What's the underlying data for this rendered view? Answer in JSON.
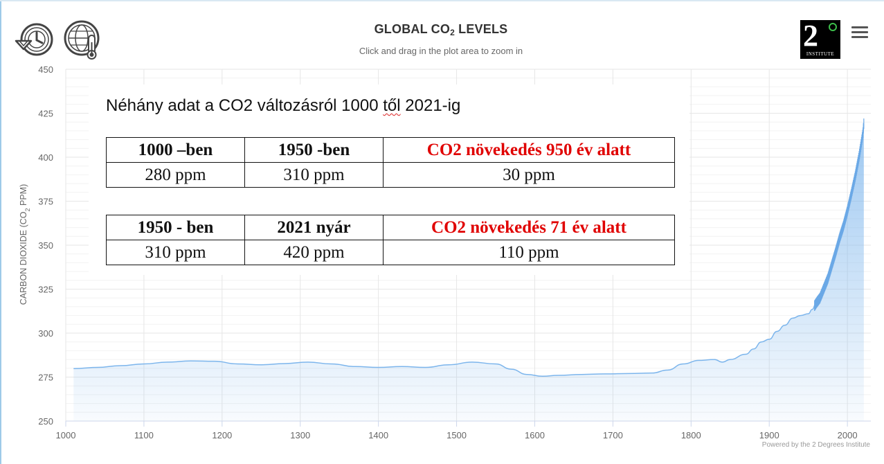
{
  "header": {
    "title_main": "GLOBAL CO",
    "title_sub": "2",
    "title_tail": " LEVELS",
    "subtitle": "Click and drag in the plot area to zoom in"
  },
  "logo": {
    "mark": "2",
    "text": "INSTITUTE"
  },
  "icons": {
    "left_1": "history-icon",
    "left_2": "globe-thermometer-icon",
    "menu": "hamburger-menu-icon"
  },
  "credits": "Powered by the 2 Degrees Institute",
  "overlay": {
    "heading_pre": "Néhány adat a CO2 változásról 1000 ",
    "heading_word": "től",
    "heading_post": " 2021-ig",
    "table1": {
      "headers": [
        "1000 –ben",
        "1950 -ben",
        "CO2 növekedés 950 év alatt"
      ],
      "values": [
        "280 ppm",
        "310 ppm",
        "30 ppm"
      ]
    },
    "table2": {
      "headers": [
        "1950 - ben",
        "2021 nyár",
        "CO2 növekedés 71 év alatt"
      ],
      "values": [
        "310 ppm",
        "420 ppm",
        "110 ppm"
      ]
    }
  },
  "chart_data": {
    "type": "area",
    "title": "GLOBAL CO2 LEVELS",
    "subtitle": "Click and drag in the plot area to zoom in",
    "ylabel": "CARBON DIOXIDE (CO2 PPM)",
    "ylabel_main": "CARBON DIOXIDE (CO",
    "ylabel_sub": "2",
    "ylabel_tail": " PPM)",
    "xlabel": "",
    "xlim": [
      1000,
      2030
    ],
    "ylim": [
      250,
      450
    ],
    "x_ticks": [
      1000,
      1100,
      1200,
      1300,
      1400,
      1500,
      1600,
      1700,
      1800,
      1900,
      2000
    ],
    "y_ticks": [
      250,
      275,
      300,
      325,
      350,
      375,
      400,
      425,
      450
    ],
    "grid": true,
    "color": "#7cb5ec",
    "series": [
      {
        "x": [
          1010,
          1040,
          1070,
          1100,
          1130,
          1160,
          1190,
          1220,
          1250,
          1280,
          1310,
          1340,
          1370,
          1400,
          1430,
          1460,
          1490,
          1520,
          1550,
          1570,
          1590,
          1610,
          1630,
          1660,
          1690,
          1720,
          1750,
          1770,
          1790,
          1810,
          1830,
          1840,
          1850,
          1870,
          1880,
          1890,
          1900,
          1910,
          1920,
          1930,
          1940,
          1950,
          1955,
          1960,
          1965,
          1970,
          1975,
          1980,
          1985,
          1990,
          1995,
          2000,
          2005,
          2010,
          2015,
          2018,
          2020,
          2021
        ],
        "y": [
          279.8,
          280.5,
          281.5,
          282.5,
          283.5,
          284.2,
          284.0,
          282.5,
          282.0,
          282.7,
          283.5,
          282.5,
          281.0,
          280.5,
          281.0,
          280.5,
          282.0,
          283.5,
          282.5,
          279.5,
          276.5,
          275.5,
          276.0,
          276.5,
          276.8,
          277.0,
          277.3,
          279.0,
          282.5,
          284.5,
          285.0,
          283.5,
          285.0,
          288.0,
          291.0,
          295.0,
          296.5,
          301.0,
          304.5,
          308.5,
          310.0,
          311.0,
          313.5,
          317.0,
          320.0,
          325.5,
          331.0,
          338.5,
          346.0,
          354.0,
          361.0,
          369.5,
          379.0,
          389.0,
          400.5,
          408.5,
          414.0,
          419.0
        ]
      }
    ]
  }
}
